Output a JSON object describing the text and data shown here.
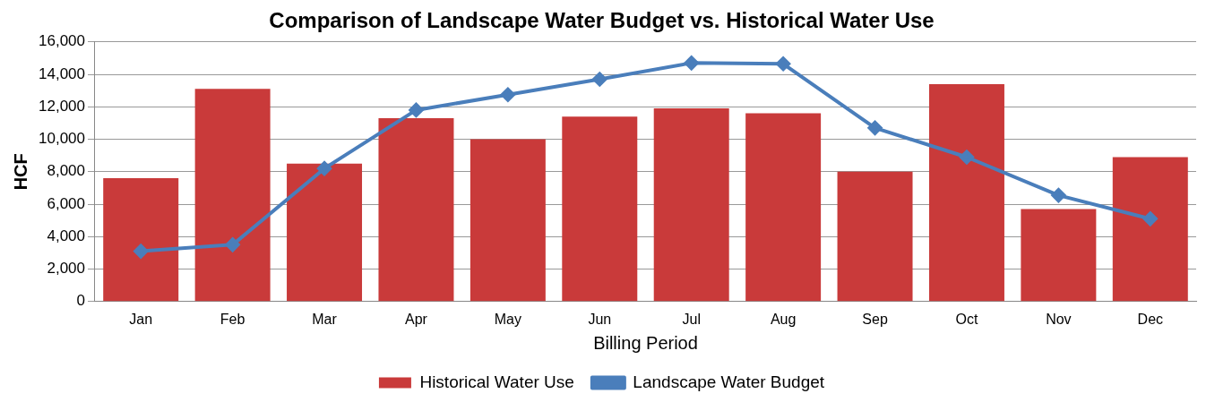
{
  "chart_data": {
    "type": "bar",
    "title": "Comparison of Landscape Water Budget vs. Historical Water Use",
    "xlabel": "Billing Period",
    "ylabel": "HCF",
    "categories": [
      "Jan",
      "Feb",
      "Mar",
      "Apr",
      "May",
      "Jun",
      "Jul",
      "Aug",
      "Sep",
      "Oct",
      "Nov",
      "Dec"
    ],
    "series": [
      {
        "name": "Historical Water Use",
        "color": "#c93a3a",
        "values": [
          7600,
          13100,
          8500,
          11300,
          10000,
          11400,
          11900,
          11600,
          8000,
          13400,
          5700,
          8900
        ]
      },
      {
        "name": "Landscape Water Budget",
        "type": "line",
        "color": "#4a7ebb",
        "marker": "diamond",
        "values": [
          3100,
          3500,
          8200,
          11800,
          12750,
          13700,
          14700,
          14650,
          10700,
          8900,
          6550,
          5100
        ]
      }
    ],
    "ylim": [
      0,
      16000
    ],
    "yticks": [
      0,
      {
        "value": 2000,
        "label": "2,000"
      },
      {
        "value": 4000,
        "label": "4,000"
      },
      {
        "value": 6000,
        "label": "6,000"
      },
      {
        "value": 8000,
        "label": "8,000"
      },
      {
        "value": 10000,
        "label": "10,000"
      },
      {
        "value": 12000,
        "label": "12,000"
      },
      {
        "value": 14000,
        "label": "14,000"
      },
      {
        "value": 16000,
        "label": "16,000"
      }
    ],
    "grid": "y",
    "legend": "bottom"
  }
}
